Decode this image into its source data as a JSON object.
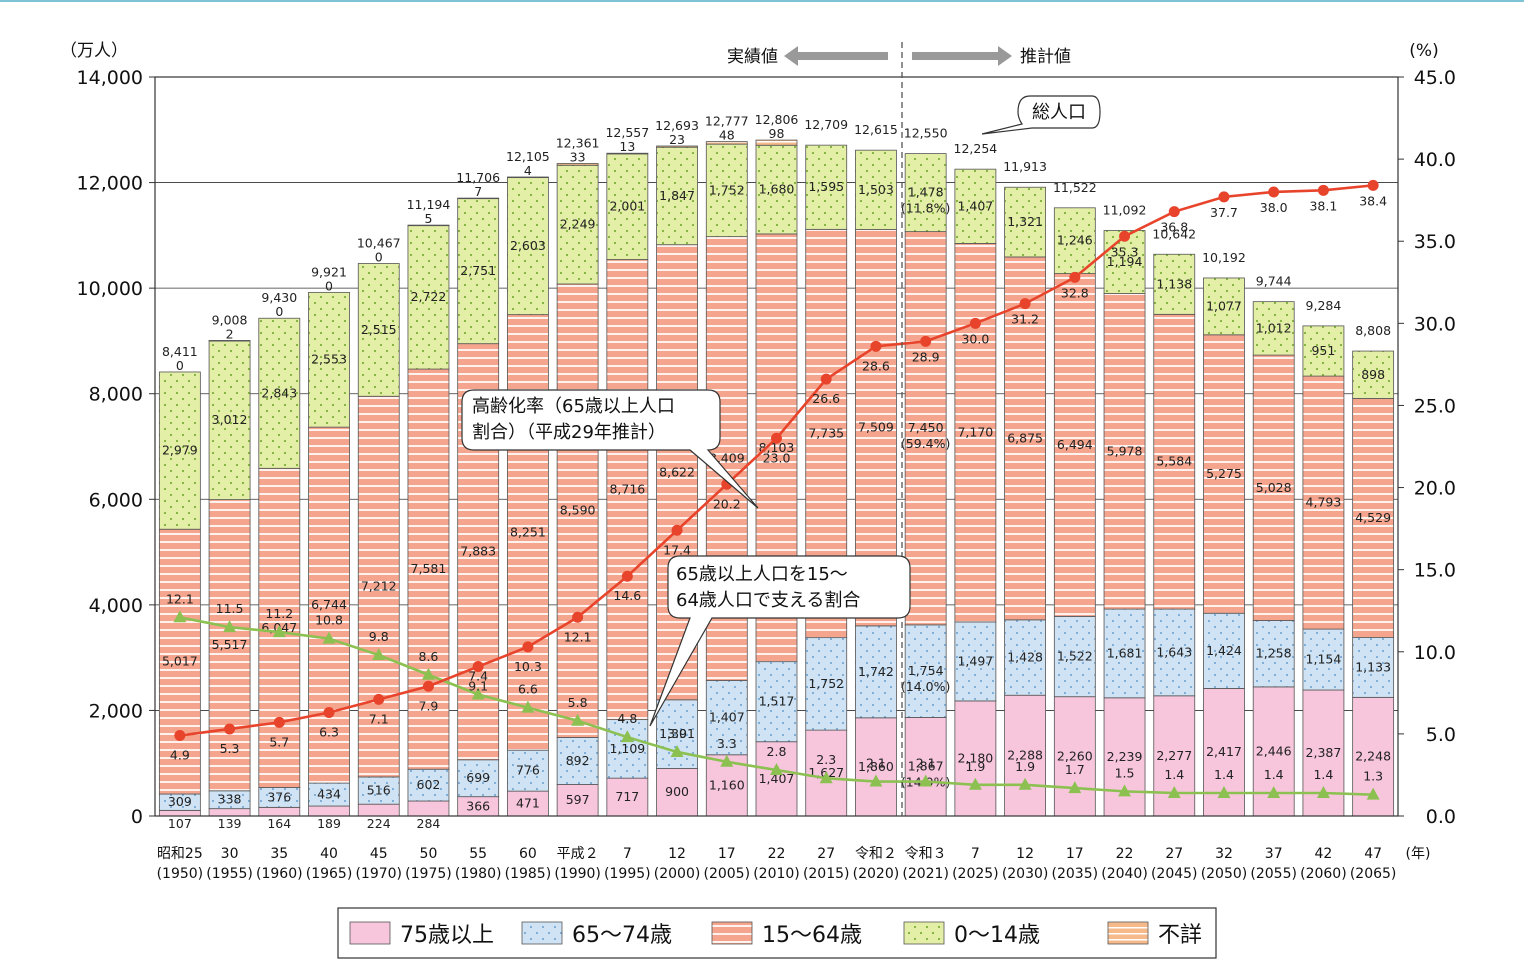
{
  "chart_data": {
    "type": "bar",
    "stacked": true,
    "left_axis": {
      "unit_label": "（万人）",
      "ylim": [
        0,
        14000
      ],
      "ticks": [
        "0",
        "2,000",
        "4,000",
        "6,000",
        "8,000",
        "10,000",
        "12,000",
        "14,000"
      ]
    },
    "right_axis": {
      "unit_label": "(%)",
      "ylim": [
        0,
        45
      ],
      "ticks": [
        "0.0",
        "5.0",
        "10.0",
        "15.0",
        "20.0",
        "25.0",
        "30.0",
        "35.0",
        "40.0",
        "45.0"
      ]
    },
    "x_unit_label": "(年)",
    "period_labels": {
      "actual": "実績値",
      "projected": "推計値"
    },
    "categories": [
      {
        "era": "昭和25",
        "year": "(1950)"
      },
      {
        "era": "30",
        "year": "(1955)"
      },
      {
        "era": "35",
        "year": "(1960)"
      },
      {
        "era": "40",
        "year": "(1965)"
      },
      {
        "era": "45",
        "year": "(1970)"
      },
      {
        "era": "50",
        "year": "(1975)"
      },
      {
        "era": "55",
        "year": "(1980)"
      },
      {
        "era": "60",
        "year": "(1985)"
      },
      {
        "era": "平成２",
        "year": "(1990)"
      },
      {
        "era": "7",
        "year": "(1995)"
      },
      {
        "era": "12",
        "year": "(2000)"
      },
      {
        "era": "17",
        "year": "(2005)"
      },
      {
        "era": "22",
        "year": "(2010)"
      },
      {
        "era": "27",
        "year": "(2015)"
      },
      {
        "era": "令和２",
        "year": "(2020)"
      },
      {
        "era": "令和３",
        "year": "(2021)"
      },
      {
        "era": "7",
        "year": "(2025)"
      },
      {
        "era": "12",
        "year": "(2030)"
      },
      {
        "era": "17",
        "year": "(2035)"
      },
      {
        "era": "22",
        "year": "(2040)"
      },
      {
        "era": "27",
        "year": "(2045)"
      },
      {
        "era": "32",
        "year": "(2050)"
      },
      {
        "era": "37",
        "year": "(2055)"
      },
      {
        "era": "42",
        "year": "(2060)"
      },
      {
        "era": "47",
        "year": "(2065)"
      }
    ],
    "series": [
      {
        "name": "75歳以上",
        "color": "#f7c6dc",
        "values": [
          107,
          139,
          164,
          189,
          224,
          284,
          366,
          471,
          597,
          717,
          900,
          1160,
          1407,
          1627,
          1860,
          1867,
          2180,
          2288,
          2260,
          2239,
          2277,
          2417,
          2446,
          2387,
          2248
        ],
        "labels": [
          "107",
          "139",
          "164",
          "189",
          "224",
          "284",
          "366",
          "471",
          "597",
          "717",
          "900",
          "1,160",
          "1,407",
          "1,627",
          "1,860",
          "1,867\n(14.9%)",
          "2,180",
          "2,288",
          "2,260",
          "2,239",
          "2,277",
          "2,417",
          "2,446",
          "2,387",
          "2,248"
        ]
      },
      {
        "name": "65～74歳",
        "color": "#cfe3f4",
        "values": [
          309,
          338,
          376,
          434,
          516,
          602,
          699,
          776,
          892,
          1109,
          1301,
          1407,
          1517,
          1752,
          1742,
          1754,
          1497,
          1428,
          1522,
          1681,
          1643,
          1424,
          1258,
          1154,
          1133
        ],
        "labels": [
          "309",
          "338",
          "376",
          "434",
          "516",
          "602",
          "699",
          "776",
          "892",
          "1,109",
          "1,301",
          "1,407",
          "1,517",
          "1,752",
          "1,742",
          "1,754\n(14.0%)",
          "1,497",
          "1,428",
          "1,522",
          "1,681",
          "1,643",
          "1,424",
          "1,258",
          "1,154",
          "1,133"
        ]
      },
      {
        "name": "15～64歳",
        "color": "#f5a58e",
        "values": [
          5017,
          5517,
          6047,
          6744,
          7212,
          7581,
          7883,
          8251,
          8590,
          8716,
          8622,
          8409,
          8103,
          7735,
          7509,
          7450,
          7170,
          6875,
          6494,
          5978,
          5584,
          5275,
          5028,
          4793,
          4529
        ],
        "labels": [
          "5,017",
          "5,517",
          "6,047",
          "6,744",
          "7,212",
          "7,581",
          "7,883",
          "8,251",
          "8,590",
          "8,716",
          "8,622",
          "8,409",
          "8,103",
          "7,735",
          "7,509",
          "7,450\n(59.4%)",
          "7,170",
          "6,875",
          "6,494",
          "5,978",
          "5,584",
          "5,275",
          "5,028",
          "4,793",
          "4,529"
        ]
      },
      {
        "name": "0～14歳",
        "color": "#e3efa6",
        "values": [
          2979,
          3012,
          2843,
          2553,
          2515,
          2722,
          2751,
          2603,
          2249,
          2001,
          1847,
          1752,
          1680,
          1595,
          1503,
          1478,
          1407,
          1321,
          1246,
          1194,
          1138,
          1077,
          1012,
          951,
          898
        ],
        "labels": [
          "2,979",
          "3,012",
          "2,843",
          "2,553",
          "2,515",
          "2,722",
          "2,751",
          "2,603",
          "2,249",
          "2,001",
          "1,847",
          "1,752",
          "1,680",
          "1,595",
          "1,503",
          "1,478\n(11.8%)",
          "1,407",
          "1,321",
          "1,246",
          "1,194",
          "1,138",
          "1,077",
          "1,012",
          "951",
          "898"
        ]
      },
      {
        "name": "不詳",
        "color": "#f6b98a",
        "values": [
          0,
          2,
          0,
          0,
          0,
          5,
          7,
          4,
          33,
          13,
          23,
          48,
          98,
          0,
          0,
          0,
          0,
          0,
          0,
          0,
          0,
          0,
          0,
          0,
          0
        ],
        "labels": [
          "0",
          "2",
          "0",
          "0",
          "0",
          "5",
          "7",
          "4",
          "33",
          "13",
          "23",
          "48",
          "98",
          "",
          "",
          "",
          "",
          "",
          "",
          "",
          "",
          "",
          "",
          "",
          ""
        ]
      }
    ],
    "totals": [
      "8,411",
      "9,008",
      "9,430",
      "9,921",
      "10,467",
      "11,194",
      "11,706",
      "12,105",
      "12,361",
      "12,557",
      "12,693",
      "12,777",
      "12,806",
      "12,709",
      "12,615",
      "12,550",
      "12,254",
      "11,913",
      "11,522",
      "11,092",
      "10,642",
      "10,192",
      "9,744",
      "9,284",
      "8,808"
    ],
    "aging_rate": {
      "name": "高齢化率（65歳以上人口割合）（平成29年推計）",
      "color": "#e8442c",
      "values": [
        4.9,
        5.3,
        5.7,
        6.3,
        7.1,
        7.9,
        9.1,
        10.3,
        12.1,
        14.6,
        17.4,
        20.2,
        23.0,
        26.6,
        28.6,
        28.9,
        30.0,
        31.2,
        32.8,
        35.3,
        36.8,
        37.7,
        38.0,
        38.1,
        38.4
      ]
    },
    "support_ratio": {
      "name": "65歳以上人口を15～64歳人口で支える割合",
      "color": "#8cc152",
      "values": [
        12.1,
        11.5,
        11.2,
        10.8,
        9.8,
        8.6,
        7.4,
        6.6,
        5.8,
        4.8,
        3.9,
        3.3,
        2.8,
        2.3,
        2.1,
        2.1,
        1.9,
        1.9,
        1.7,
        1.5,
        1.4,
        1.4,
        1.4,
        1.4,
        1.3
      ]
    },
    "callouts": {
      "total": "総人口",
      "aging_line1": "高齢化率（65歳以上人口",
      "aging_line2": "割合）（平成29年推計）",
      "support_line1": "65歳以上人口を15～",
      "support_line2": "64歳人口で支える割合"
    },
    "legend": [
      "75歳以上",
      "65～74歳",
      "15～64歳",
      "0～14歳",
      "不詳"
    ],
    "legend_placement": "bottom"
  }
}
